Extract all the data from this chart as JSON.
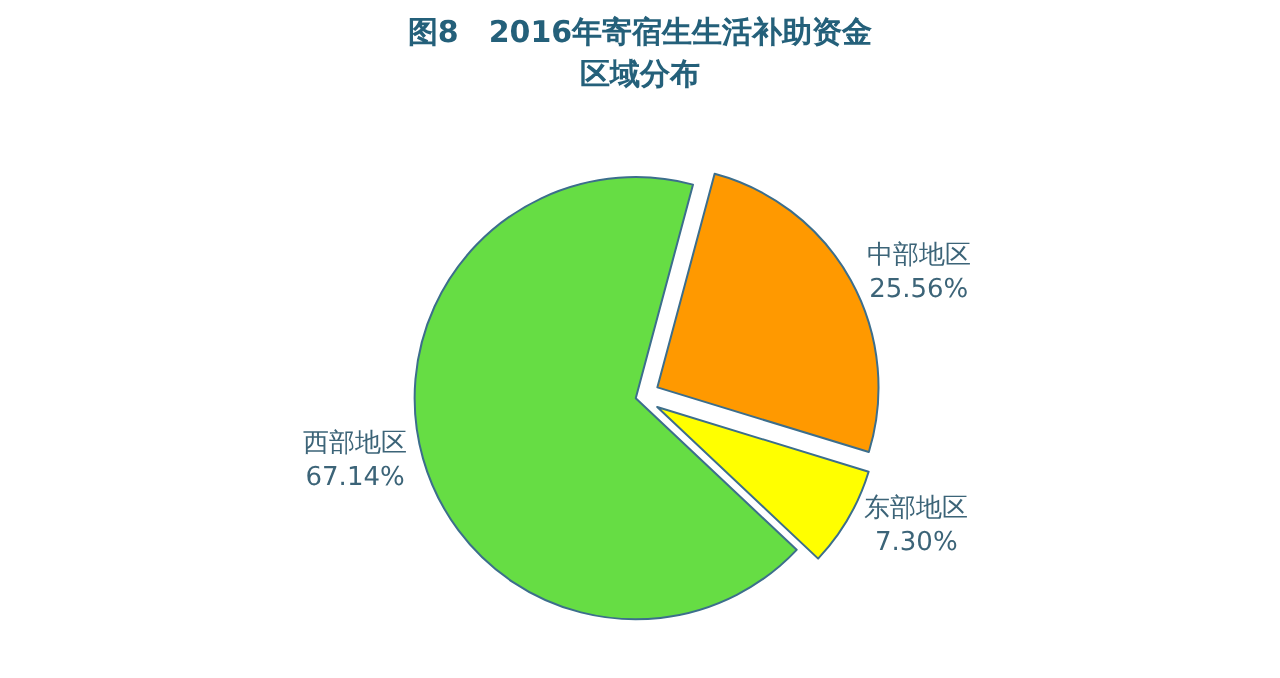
{
  "chart_data": {
    "type": "pie",
    "title": "图8　2016年寄宿生生活补助资金区域分布",
    "categories": [
      "中部地区",
      "东部地区",
      "西部地区"
    ],
    "values": [
      25.56,
      7.3,
      67.14
    ],
    "value_labels": [
      "25.56%",
      "7.30%",
      "67.14%"
    ],
    "colors": [
      "#ff9900",
      "#ffff00",
      "#66dd44"
    ],
    "legend": false
  }
}
